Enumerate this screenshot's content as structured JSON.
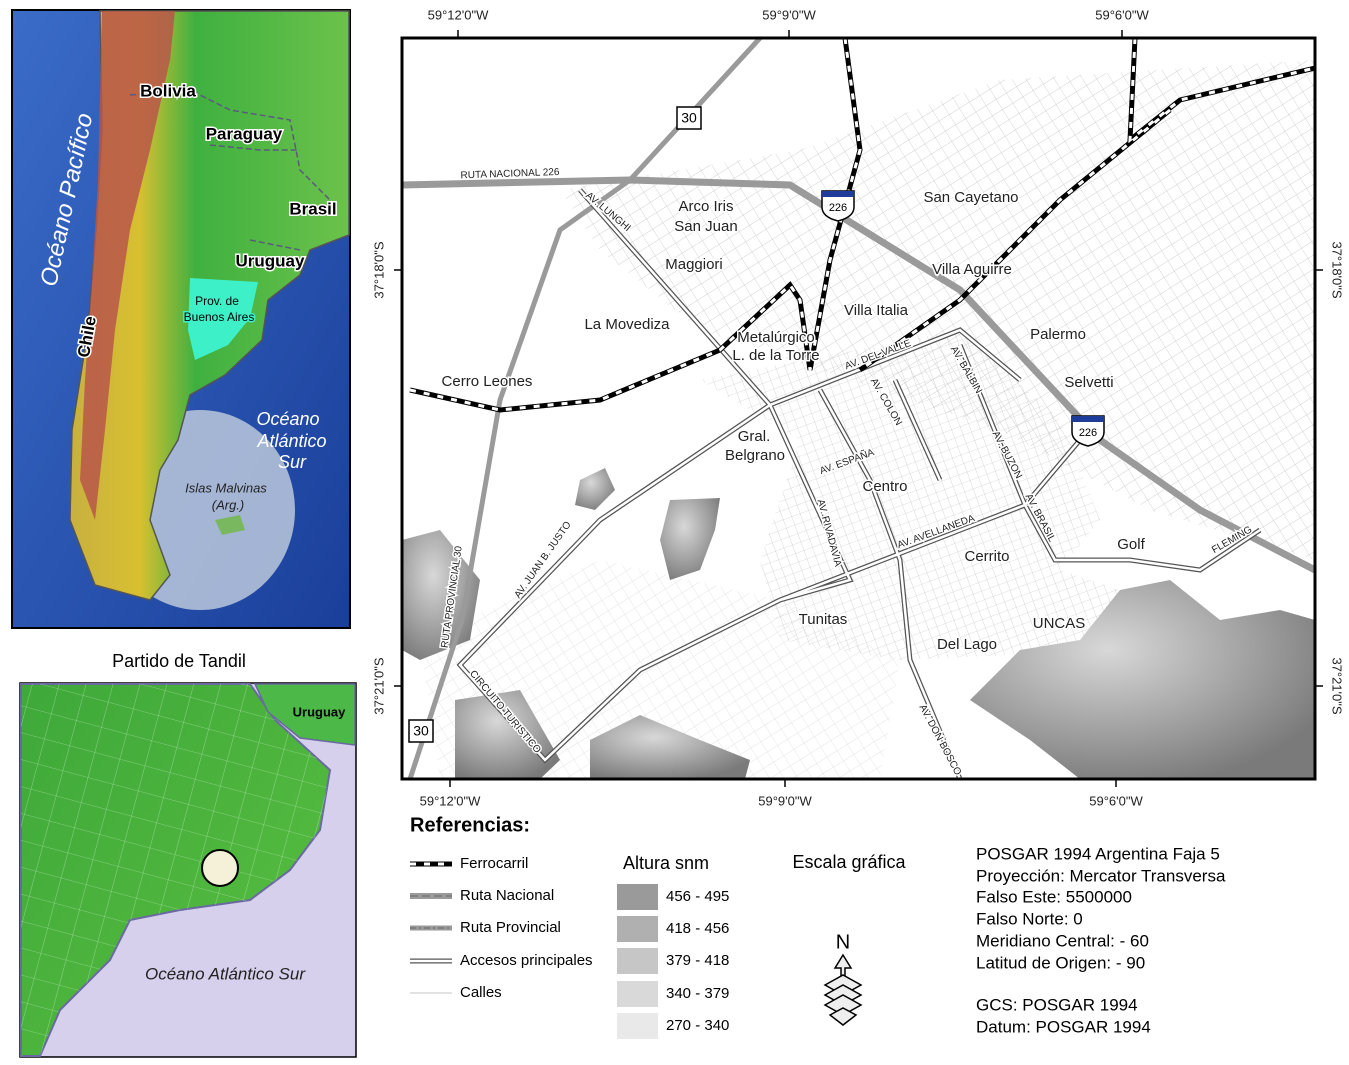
{
  "overview_map": {
    "labels": [
      "Bolivia",
      "Paraguay",
      "Brasil",
      "Uruguay",
      "Chile",
      "Océano Pacífico",
      "Prov. de",
      "Buenos Aires",
      "Océano",
      "Atlántico",
      "Sur",
      "Islas Malvinas",
      "(Arg.)"
    ]
  },
  "locator_map": {
    "title": "Partido de Tandil",
    "labels": [
      "Uruguay",
      "Océano Atlántico Sur"
    ]
  },
  "main_map": {
    "top_ticks": [
      "59°12'0\"W",
      "59°9'0\"W",
      "59°6'0\"W"
    ],
    "bottom_ticks": [
      "59°12'0\"W",
      "59°9'0\"W",
      "59°6'0\"W"
    ],
    "left_ticks": [
      "37°18'0\"S",
      "37°21'0\"S"
    ],
    "right_ticks": [
      "37°18'0\"S",
      "37°21'0\"S"
    ],
    "shields": [
      "30",
      "30",
      "226",
      "226"
    ],
    "labels": [
      "RUTA NACIONAL 226",
      "AV. LUNGHI",
      "Arco Iris",
      "San Juan",
      "Maggiori",
      "San Cayetano",
      "Villa Aguirre",
      "Villa Italia",
      "La Movediza",
      "Metalúrgico",
      "L. de la Torre",
      "AV. DEL VALLE",
      "AV. BALBIN",
      "Palermo",
      "Selvetti",
      "Cerro Leones",
      "AV. COLON",
      "Gral.",
      "Belgrano",
      "AV. ESPAÑA",
      "AV. BUZON",
      "Centro",
      "AV. RIVADAVIA",
      "AV. AVELLANEDA",
      "AV. BRASIL",
      "Golf",
      "FLEMING",
      "AV. JUAN B. JUSTO",
      "RUTA PROVINCIAL 30",
      "Cerrito",
      "Tunitas",
      "UNCAS",
      "Del Lago",
      "CIRCUITO TURISTICO",
      "AV. DON BOSCO"
    ]
  },
  "legend": {
    "title": "Referencias:",
    "items": [
      "Ferrocarril",
      "Ruta Nacional",
      "Ruta Provincial",
      "Accesos principales",
      "Calles"
    ],
    "elevation": {
      "title": "Altura snm",
      "classes": [
        "456 - 495",
        "418 - 456",
        "379 - 418",
        "340 - 379",
        "270 - 340"
      ],
      "colors": [
        "#9a9a9a",
        "#b0b0b0",
        "#c6c6c6",
        "#d9d9d9",
        "#e9e9e9"
      ]
    },
    "scale": {
      "title": "Escala gráfica",
      "north": "N"
    },
    "projection": [
      "POSGAR 1994 Argentina Faja 5",
      "Proyección: Mercator Transversa",
      "Falso Este: 5500000",
      "Falso Norte: 0",
      "Meridiano Central: - 60",
      "Latitud de Origen: - 90",
      "GCS: POSGAR 1994",
      "Datum: POSGAR 1994"
    ]
  }
}
